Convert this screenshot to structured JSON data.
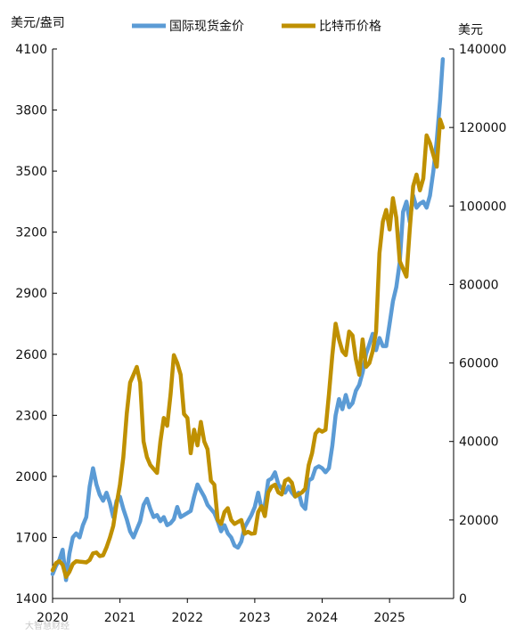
{
  "chart_data": {
    "type": "line",
    "title": "",
    "left_unit": "美元/盎司",
    "right_unit": "美元",
    "legend_position": "top",
    "grid": false,
    "x_ticks": [
      "2020",
      "2021",
      "2022",
      "2023",
      "2024",
      "2025"
    ],
    "x_range": [
      2020.0,
      2025.95
    ],
    "y_left": {
      "range": [
        1400,
        4100
      ],
      "ticks": [
        1400,
        1700,
        2000,
        2300,
        2600,
        2900,
        3200,
        3500,
        3800,
        4100
      ]
    },
    "y_right": {
      "range": [
        0,
        140000
      ],
      "ticks": [
        0,
        20000,
        40000,
        60000,
        80000,
        100000,
        120000,
        140000
      ]
    },
    "series": [
      {
        "name": "国际现货金价",
        "axis": "left",
        "color": "#5b9bd5",
        "points": [
          [
            2020.0,
            1520
          ],
          [
            2020.05,
            1560
          ],
          [
            2020.1,
            1590
          ],
          [
            2020.15,
            1640
          ],
          [
            2020.2,
            1490
          ],
          [
            2020.25,
            1620
          ],
          [
            2020.3,
            1700
          ],
          [
            2020.35,
            1720
          ],
          [
            2020.4,
            1700
          ],
          [
            2020.45,
            1760
          ],
          [
            2020.5,
            1800
          ],
          [
            2020.55,
            1950
          ],
          [
            2020.6,
            2040
          ],
          [
            2020.65,
            1960
          ],
          [
            2020.7,
            1910
          ],
          [
            2020.75,
            1880
          ],
          [
            2020.8,
            1920
          ],
          [
            2020.85,
            1870
          ],
          [
            2020.9,
            1800
          ],
          [
            2020.95,
            1880
          ],
          [
            2021.0,
            1900
          ],
          [
            2021.05,
            1840
          ],
          [
            2021.1,
            1790
          ],
          [
            2021.15,
            1730
          ],
          [
            2021.2,
            1700
          ],
          [
            2021.25,
            1740
          ],
          [
            2021.3,
            1780
          ],
          [
            2021.35,
            1860
          ],
          [
            2021.4,
            1890
          ],
          [
            2021.45,
            1840
          ],
          [
            2021.5,
            1800
          ],
          [
            2021.55,
            1810
          ],
          [
            2021.6,
            1780
          ],
          [
            2021.65,
            1800
          ],
          [
            2021.7,
            1760
          ],
          [
            2021.75,
            1770
          ],
          [
            2021.8,
            1790
          ],
          [
            2021.85,
            1850
          ],
          [
            2021.9,
            1800
          ],
          [
            2021.95,
            1810
          ],
          [
            2022.0,
            1820
          ],
          [
            2022.05,
            1830
          ],
          [
            2022.1,
            1900
          ],
          [
            2022.15,
            1960
          ],
          [
            2022.2,
            1930
          ],
          [
            2022.25,
            1900
          ],
          [
            2022.3,
            1860
          ],
          [
            2022.35,
            1840
          ],
          [
            2022.4,
            1820
          ],
          [
            2022.45,
            1780
          ],
          [
            2022.5,
            1730
          ],
          [
            2022.55,
            1760
          ],
          [
            2022.6,
            1720
          ],
          [
            2022.65,
            1700
          ],
          [
            2022.7,
            1660
          ],
          [
            2022.75,
            1650
          ],
          [
            2022.8,
            1680
          ],
          [
            2022.85,
            1750
          ],
          [
            2022.9,
            1780
          ],
          [
            2022.95,
            1810
          ],
          [
            2023.0,
            1850
          ],
          [
            2023.05,
            1920
          ],
          [
            2023.1,
            1840
          ],
          [
            2023.15,
            1860
          ],
          [
            2023.2,
            1980
          ],
          [
            2023.25,
            1990
          ],
          [
            2023.3,
            2020
          ],
          [
            2023.35,
            1960
          ],
          [
            2023.4,
            1940
          ],
          [
            2023.45,
            1920
          ],
          [
            2023.5,
            1950
          ],
          [
            2023.55,
            1920
          ],
          [
            2023.6,
            1900
          ],
          [
            2023.65,
            1920
          ],
          [
            2023.7,
            1860
          ],
          [
            2023.75,
            1840
          ],
          [
            2023.8,
            1980
          ],
          [
            2023.85,
            1990
          ],
          [
            2023.9,
            2040
          ],
          [
            2023.95,
            2050
          ],
          [
            2024.0,
            2040
          ],
          [
            2024.05,
            2020
          ],
          [
            2024.1,
            2040
          ],
          [
            2024.15,
            2150
          ],
          [
            2024.2,
            2300
          ],
          [
            2024.25,
            2380
          ],
          [
            2024.3,
            2330
          ],
          [
            2024.35,
            2400
          ],
          [
            2024.4,
            2340
          ],
          [
            2024.45,
            2360
          ],
          [
            2024.5,
            2420
          ],
          [
            2024.55,
            2450
          ],
          [
            2024.6,
            2510
          ],
          [
            2024.65,
            2600
          ],
          [
            2024.7,
            2650
          ],
          [
            2024.75,
            2700
          ],
          [
            2024.8,
            2620
          ],
          [
            2024.85,
            2680
          ],
          [
            2024.9,
            2640
          ],
          [
            2024.95,
            2640
          ],
          [
            2025.0,
            2750
          ],
          [
            2025.05,
            2860
          ],
          [
            2025.1,
            2930
          ],
          [
            2025.15,
            3050
          ],
          [
            2025.2,
            3300
          ],
          [
            2025.25,
            3350
          ],
          [
            2025.3,
            3250
          ],
          [
            2025.35,
            3380
          ],
          [
            2025.4,
            3320
          ],
          [
            2025.45,
            3340
          ],
          [
            2025.5,
            3350
          ],
          [
            2025.55,
            3320
          ],
          [
            2025.6,
            3380
          ],
          [
            2025.65,
            3500
          ],
          [
            2025.7,
            3650
          ],
          [
            2025.75,
            3850
          ],
          [
            2025.79,
            4050
          ]
        ]
      },
      {
        "name": "比特币价格",
        "axis": "right",
        "color": "#bf9000",
        "points": [
          [
            2020.0,
            7200
          ],
          [
            2020.05,
            9000
          ],
          [
            2020.1,
            9500
          ],
          [
            2020.15,
            8600
          ],
          [
            2020.2,
            5500
          ],
          [
            2020.25,
            6800
          ],
          [
            2020.3,
            8800
          ],
          [
            2020.35,
            9500
          ],
          [
            2020.4,
            9400
          ],
          [
            2020.45,
            9300
          ],
          [
            2020.5,
            9200
          ],
          [
            2020.55,
            9800
          ],
          [
            2020.6,
            11500
          ],
          [
            2020.65,
            11700
          ],
          [
            2020.7,
            10800
          ],
          [
            2020.75,
            11000
          ],
          [
            2020.8,
            13000
          ],
          [
            2020.85,
            15500
          ],
          [
            2020.9,
            18500
          ],
          [
            2020.95,
            24000
          ],
          [
            2021.0,
            29000
          ],
          [
            2021.05,
            36000
          ],
          [
            2021.1,
            47000
          ],
          [
            2021.15,
            55000
          ],
          [
            2021.2,
            57000
          ],
          [
            2021.25,
            59000
          ],
          [
            2021.3,
            55000
          ],
          [
            2021.35,
            40000
          ],
          [
            2021.4,
            36000
          ],
          [
            2021.45,
            34000
          ],
          [
            2021.5,
            33000
          ],
          [
            2021.55,
            32000
          ],
          [
            2021.6,
            40000
          ],
          [
            2021.65,
            46000
          ],
          [
            2021.7,
            44000
          ],
          [
            2021.75,
            52000
          ],
          [
            2021.8,
            62000
          ],
          [
            2021.85,
            60000
          ],
          [
            2021.9,
            57000
          ],
          [
            2021.95,
            47000
          ],
          [
            2022.0,
            46000
          ],
          [
            2022.05,
            37000
          ],
          [
            2022.1,
            43000
          ],
          [
            2022.15,
            39000
          ],
          [
            2022.2,
            45000
          ],
          [
            2022.25,
            40000
          ],
          [
            2022.3,
            38000
          ],
          [
            2022.35,
            30000
          ],
          [
            2022.4,
            29000
          ],
          [
            2022.45,
            20000
          ],
          [
            2022.5,
            19000
          ],
          [
            2022.55,
            22000
          ],
          [
            2022.6,
            23000
          ],
          [
            2022.65,
            20000
          ],
          [
            2022.7,
            19000
          ],
          [
            2022.75,
            19500
          ],
          [
            2022.8,
            20000
          ],
          [
            2022.85,
            16500
          ],
          [
            2022.9,
            17000
          ],
          [
            2022.95,
            16500
          ],
          [
            2023.0,
            16600
          ],
          [
            2023.05,
            22000
          ],
          [
            2023.1,
            23500
          ],
          [
            2023.15,
            21000
          ],
          [
            2023.2,
            27000
          ],
          [
            2023.25,
            28500
          ],
          [
            2023.3,
            29000
          ],
          [
            2023.35,
            27000
          ],
          [
            2023.4,
            26500
          ],
          [
            2023.45,
            30000
          ],
          [
            2023.5,
            30500
          ],
          [
            2023.55,
            29500
          ],
          [
            2023.6,
            26000
          ],
          [
            2023.65,
            26500
          ],
          [
            2023.7,
            27000
          ],
          [
            2023.75,
            28000
          ],
          [
            2023.8,
            34000
          ],
          [
            2023.85,
            37000
          ],
          [
            2023.9,
            42000
          ],
          [
            2023.95,
            43000
          ],
          [
            2024.0,
            42500
          ],
          [
            2024.05,
            43000
          ],
          [
            2024.1,
            52000
          ],
          [
            2024.15,
            62000
          ],
          [
            2024.2,
            70000
          ],
          [
            2024.25,
            66000
          ],
          [
            2024.3,
            63000
          ],
          [
            2024.35,
            62000
          ],
          [
            2024.4,
            68000
          ],
          [
            2024.45,
            67000
          ],
          [
            2024.5,
            61000
          ],
          [
            2024.55,
            57000
          ],
          [
            2024.6,
            66000
          ],
          [
            2024.65,
            59000
          ],
          [
            2024.7,
            60000
          ],
          [
            2024.75,
            63000
          ],
          [
            2024.8,
            68000
          ],
          [
            2024.85,
            88000
          ],
          [
            2024.9,
            96000
          ],
          [
            2024.95,
            99000
          ],
          [
            2025.0,
            94000
          ],
          [
            2025.05,
            102000
          ],
          [
            2025.1,
            97000
          ],
          [
            2025.15,
            86000
          ],
          [
            2025.2,
            84000
          ],
          [
            2025.25,
            82000
          ],
          [
            2025.3,
            94000
          ],
          [
            2025.35,
            105000
          ],
          [
            2025.4,
            108000
          ],
          [
            2025.45,
            104000
          ],
          [
            2025.5,
            107000
          ],
          [
            2025.55,
            118000
          ],
          [
            2025.6,
            116000
          ],
          [
            2025.65,
            113000
          ],
          [
            2025.7,
            110000
          ],
          [
            2025.75,
            122000
          ],
          [
            2025.79,
            120000
          ]
        ]
      }
    ]
  },
  "watermark": "大智慧财经"
}
